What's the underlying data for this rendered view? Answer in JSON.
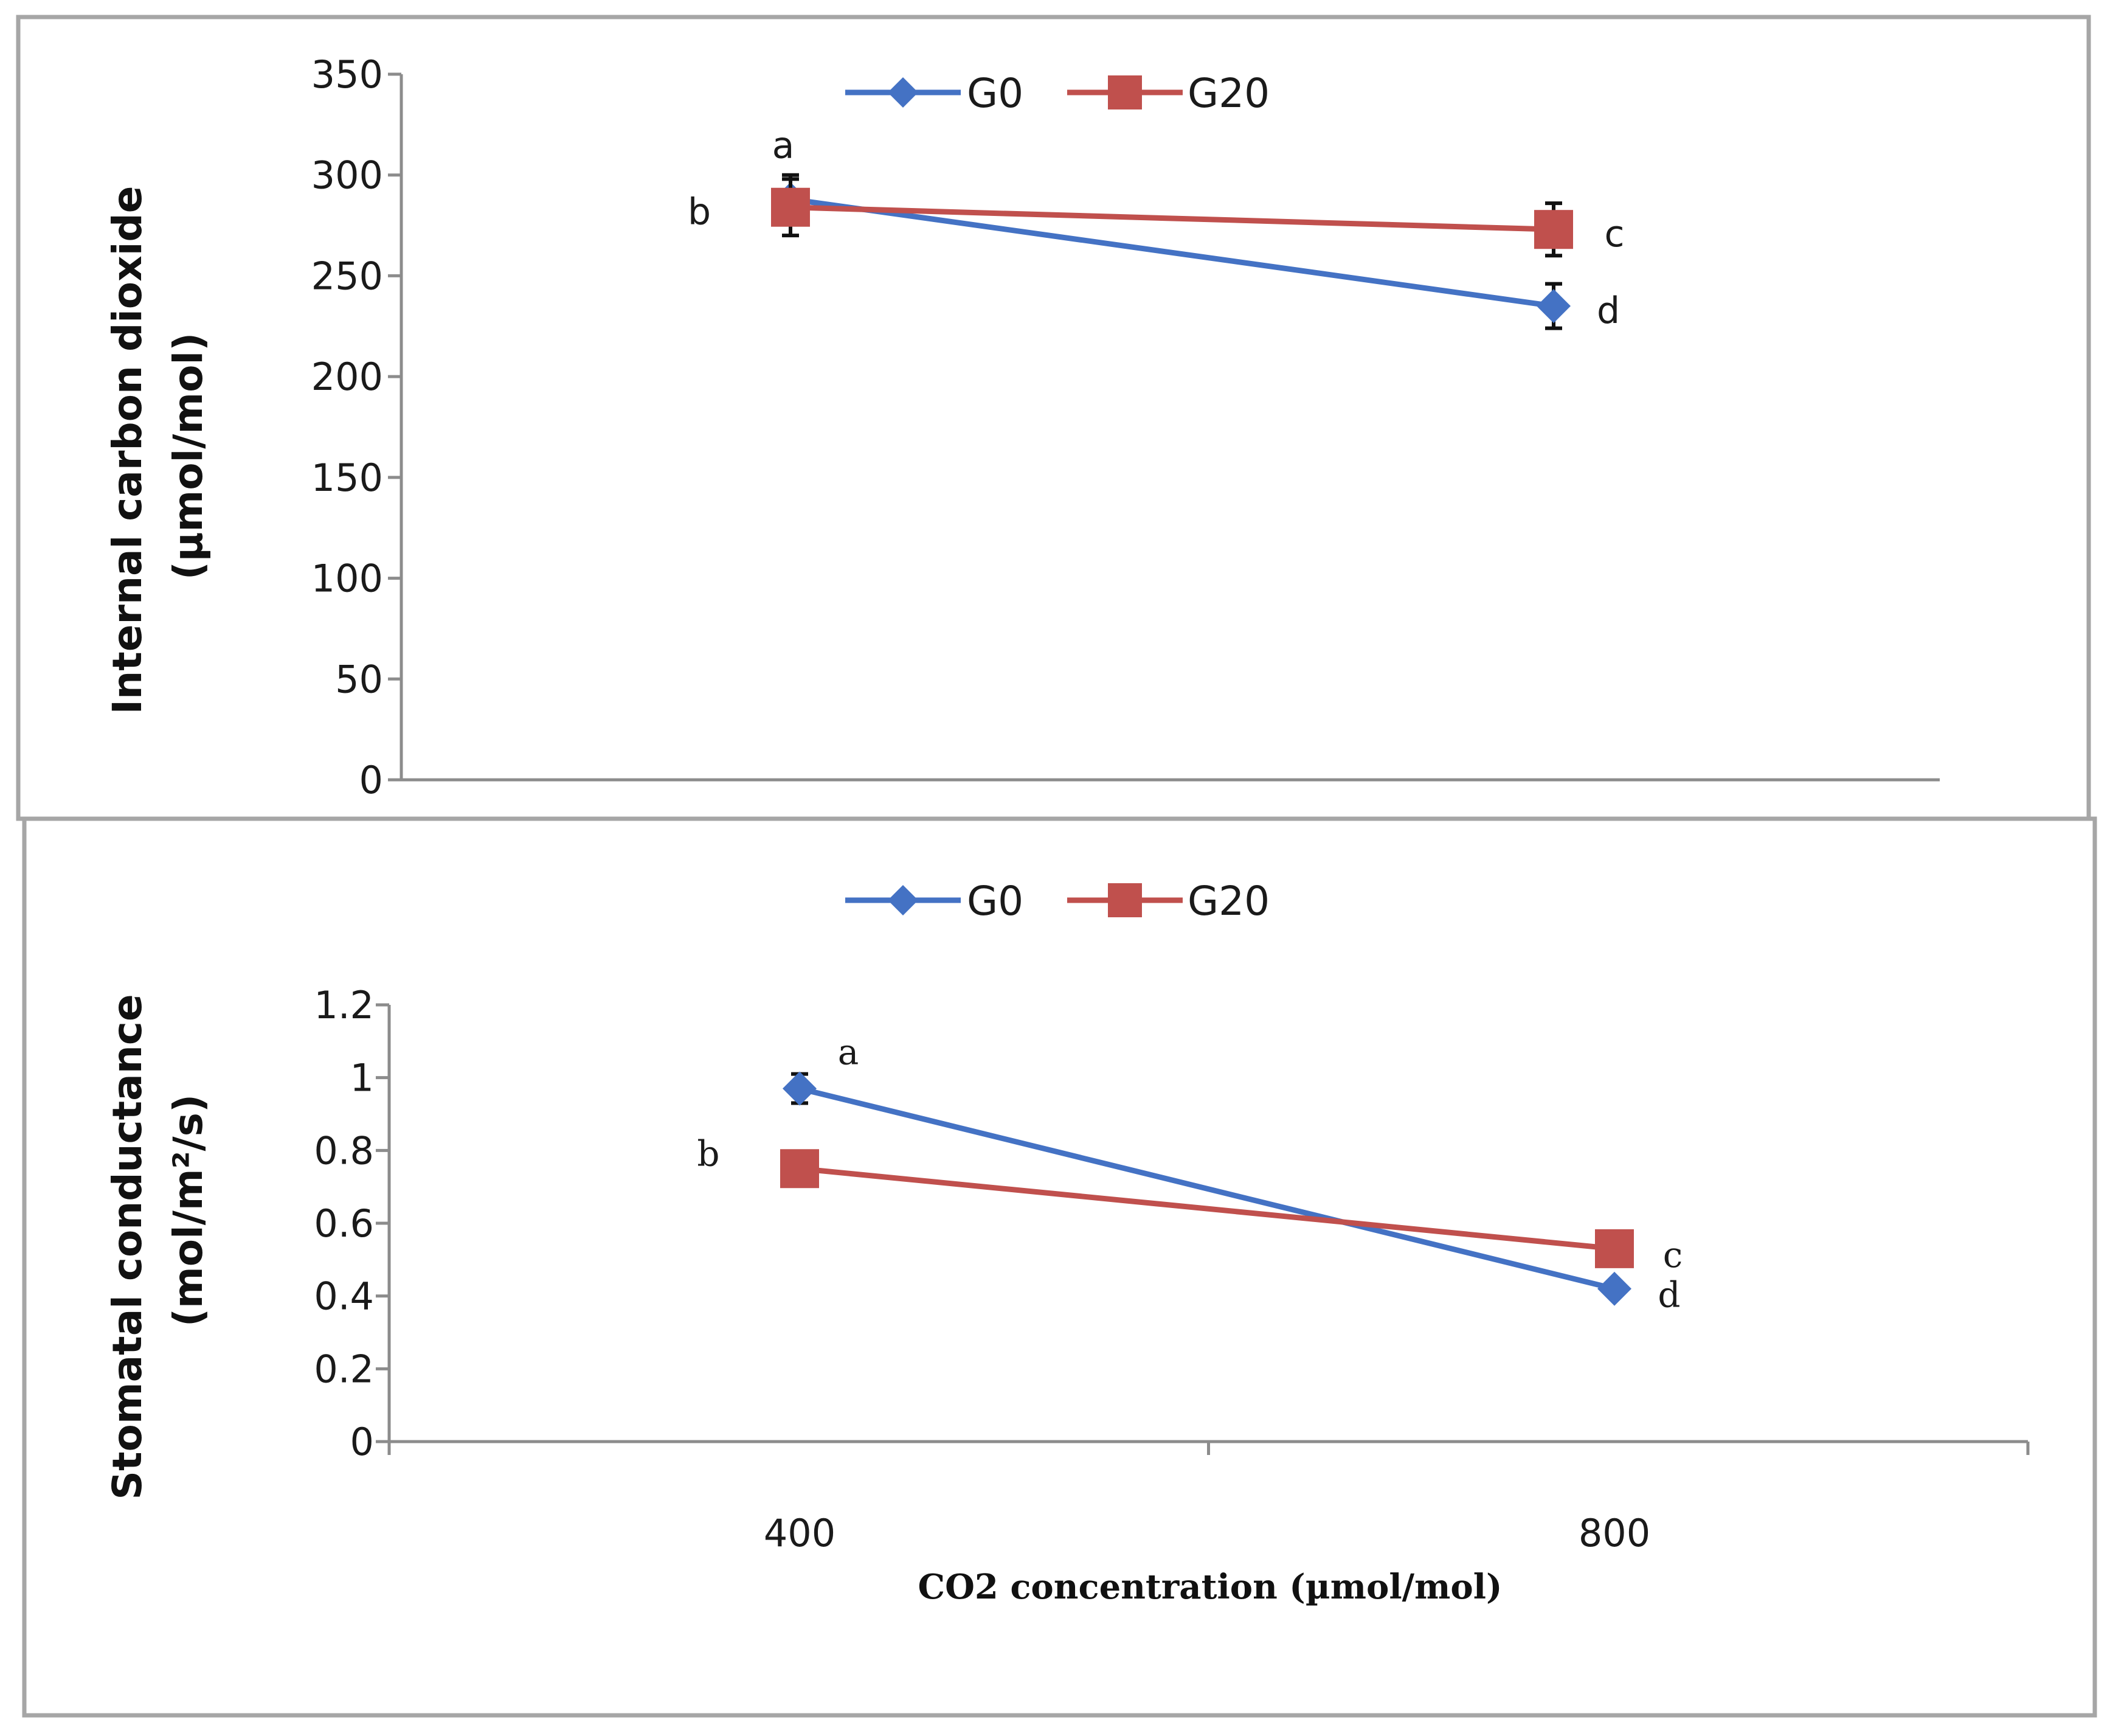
{
  "colors": {
    "G0": "#4472c4",
    "G20": "#c0504d",
    "frame": "#a6a6a6",
    "axis": "#8c8c8c"
  },
  "chart_data": [
    {
      "type": "line",
      "panel": "top",
      "title": "",
      "ylabel_line1": "Internal carbon dioxide",
      "ylabel_line2": "(µmol/mol)",
      "xlabel": "",
      "ylim": [
        0,
        350
      ],
      "y_ticks": [
        "0",
        "50",
        "100",
        "150",
        "200",
        "250",
        "300",
        "350"
      ],
      "categories": [
        "400",
        "800"
      ],
      "legend": [
        "G0",
        "G20"
      ],
      "legend_position": "top-center",
      "series": [
        {
          "name": "G0",
          "marker": "diamond",
          "values": [
            288,
            235
          ],
          "errors": [
            12,
            11
          ],
          "labels": [
            "a",
            "d"
          ]
        },
        {
          "name": "G20",
          "marker": "square",
          "values": [
            284,
            273
          ],
          "errors": [
            14,
            13
          ],
          "labels": [
            "b",
            "c"
          ]
        }
      ]
    },
    {
      "type": "line",
      "panel": "bottom",
      "title": "",
      "ylabel_line1": "Stomatal conductance",
      "ylabel_line2": "(mol/m²/s)",
      "xlabel": "CO2 concentration (µmol/mol)",
      "ylim": [
        0,
        1.2
      ],
      "y_ticks": [
        "0",
        "0.2",
        "0.4",
        "0.6",
        "0.8",
        "1",
        "1.2"
      ],
      "categories": [
        "400",
        "800"
      ],
      "x_tick_labels": [
        "400",
        "800"
      ],
      "legend": [
        "G0",
        "G20"
      ],
      "legend_position": "top-center",
      "series": [
        {
          "name": "G0",
          "marker": "diamond",
          "values": [
            0.97,
            0.42
          ],
          "errors": [
            0.04,
            0.01
          ],
          "labels": [
            "a",
            "d"
          ]
        },
        {
          "name": "G20",
          "marker": "square",
          "values": [
            0.75,
            0.53
          ],
          "errors": [
            0.0,
            0.0
          ],
          "labels": [
            "b",
            "c"
          ]
        }
      ]
    }
  ]
}
